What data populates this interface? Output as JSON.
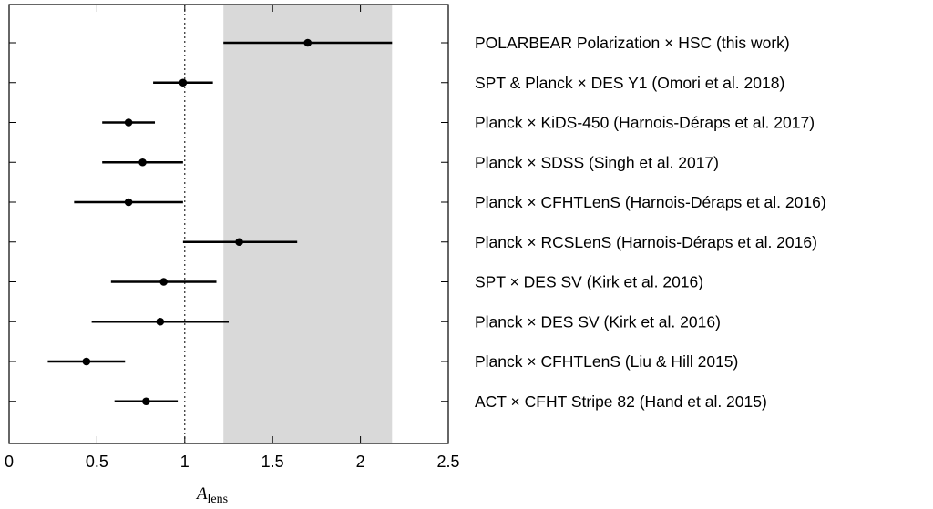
{
  "chart_data": {
    "type": "forest",
    "xlabel": "A",
    "xlabel_subscript": "lens",
    "xlim": [
      0,
      2.5
    ],
    "xticks": [
      0,
      0.5,
      1,
      1.5,
      2,
      2.5
    ],
    "xtick_labels": [
      "0",
      "0.5",
      "1",
      "1.5",
      "2",
      "2.5"
    ],
    "reference_line": 1.0,
    "shaded_band": [
      1.22,
      2.18
    ],
    "band_color": "#d9d9d9",
    "points": [
      {
        "label": "POLARBEAR Polarization × HSC (this work)",
        "value": 1.7,
        "low": 1.22,
        "high": 2.18
      },
      {
        "label": "SPT & Planck × DES Y1 (Omori et al. 2018)",
        "value": 0.99,
        "low": 0.82,
        "high": 1.16
      },
      {
        "label": "Planck × KiDS-450 (Harnois-Déraps et al. 2017)",
        "value": 0.68,
        "low": 0.53,
        "high": 0.83
      },
      {
        "label": "Planck × SDSS (Singh et al. 2017)",
        "value": 0.76,
        "low": 0.53,
        "high": 0.99
      },
      {
        "label": "Planck × CFHTLenS (Harnois-Déraps et al. 2016)",
        "value": 0.68,
        "low": 0.37,
        "high": 0.99
      },
      {
        "label": "Planck × RCSLenS (Harnois-Déraps et al. 2016)",
        "value": 1.31,
        "low": 0.99,
        "high": 1.64
      },
      {
        "label": "SPT × DES SV (Kirk et al. 2016)",
        "value": 0.88,
        "low": 0.58,
        "high": 1.18
      },
      {
        "label": "Planck × DES SV (Kirk et al. 2016)",
        "value": 0.86,
        "low": 0.47,
        "high": 1.25
      },
      {
        "label": "Planck × CFHTLenS (Liu & Hill 2015)",
        "value": 0.44,
        "low": 0.22,
        "high": 0.66
      },
      {
        "label": "ACT × CFHT Stripe 82 (Hand et al. 2015)",
        "value": 0.78,
        "low": 0.6,
        "high": 0.96
      }
    ]
  }
}
